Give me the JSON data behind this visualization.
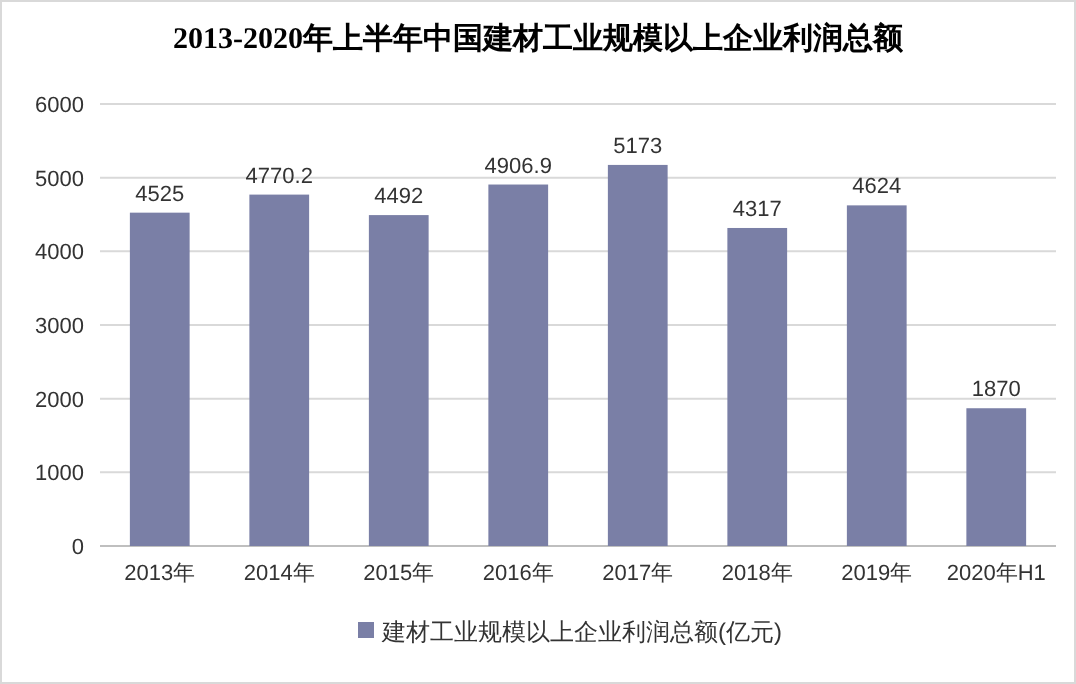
{
  "chart_data": {
    "type": "bar",
    "title": "2013-2020年上半年中国建材工业规模以上企业利润总额",
    "categories": [
      "2013年",
      "2014年",
      "2015年",
      "2016年",
      "2017年",
      "2018年",
      "2019年",
      "2020年H1"
    ],
    "series": [
      {
        "name": "建材工业规模以上企业利润总额(亿元)",
        "color": "#7a7fa6",
        "values": [
          4525,
          4770.2,
          4492,
          4906.9,
          5173,
          4317,
          4624,
          1870
        ]
      }
    ],
    "ylim": [
      0,
      6000
    ],
    "yticks": [
      0,
      1000,
      2000,
      3000,
      4000,
      5000,
      6000
    ],
    "grid": "y",
    "legend": "bottom",
    "data_labels": true
  }
}
